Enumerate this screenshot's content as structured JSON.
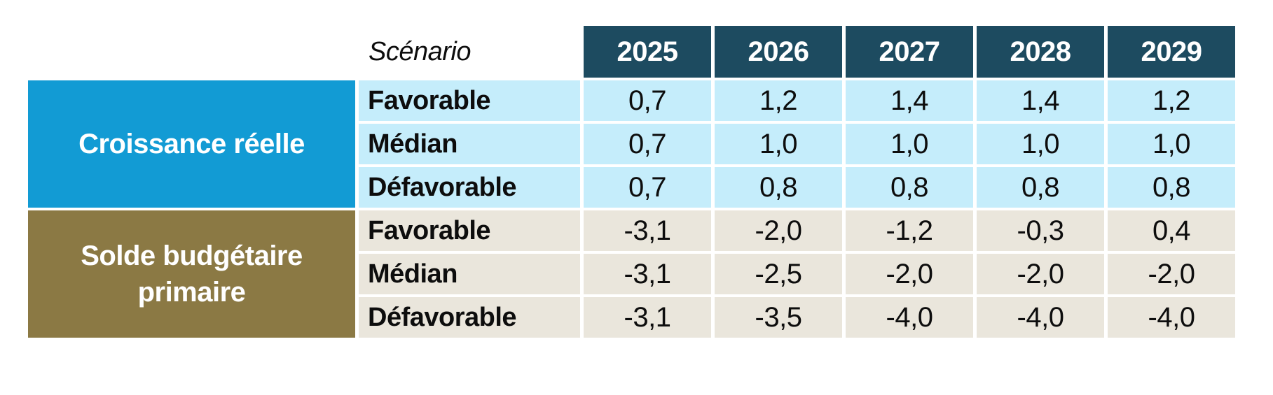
{
  "chart_data": {
    "type": "table",
    "scenario_header": "Scénario",
    "years": [
      "2025",
      "2026",
      "2027",
      "2028",
      "2029"
    ],
    "groups": [
      {
        "label": "Croissance réelle",
        "rows": [
          {
            "scenario": "Favorable",
            "values": [
              "0,7",
              "1,2",
              "1,4",
              "1,4",
              "1,2"
            ]
          },
          {
            "scenario": "Médian",
            "values": [
              "0,7",
              "1,0",
              "1,0",
              "1,0",
              "1,0"
            ]
          },
          {
            "scenario": "Défavorable",
            "values": [
              "0,7",
              "0,8",
              "0,8",
              "0,8",
              "0,8"
            ]
          }
        ]
      },
      {
        "label": "Solde budgétaire primaire",
        "rows": [
          {
            "scenario": "Favorable",
            "values": [
              "-3,1",
              "-2,0",
              "-1,2",
              "-0,3",
              "0,4"
            ]
          },
          {
            "scenario": "Médian",
            "values": [
              "-3,1",
              "-2,5",
              "-2,0",
              "-2,0",
              "-2,0"
            ]
          },
          {
            "scenario": "Défavorable",
            "values": [
              "-3,1",
              "-3,5",
              "-4,0",
              "-4,0",
              "-4,0"
            ]
          }
        ]
      }
    ]
  },
  "colors": {
    "header_year_bg": "#1D4B60",
    "growth_group_bg": "#129BD4",
    "growth_row_bg": "#C5EDFB",
    "balance_group_bg": "#8B7944",
    "balance_row_bg": "#EAE6DC",
    "header_text": "#FFFFFF",
    "body_text": "#0D0D0D"
  }
}
